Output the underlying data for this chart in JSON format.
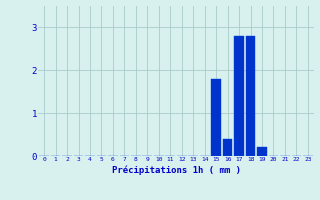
{
  "hours": [
    0,
    1,
    2,
    3,
    4,
    5,
    6,
    7,
    8,
    9,
    10,
    11,
    12,
    13,
    14,
    15,
    16,
    17,
    18,
    19,
    20,
    21,
    22,
    23
  ],
  "values": [
    0,
    0,
    0,
    0,
    0,
    0,
    0,
    0,
    0,
    0,
    0,
    0,
    0,
    0,
    0,
    1.8,
    0.4,
    2.8,
    2.8,
    0.2,
    0,
    0,
    0,
    0
  ],
  "bar_color": "#0033cc",
  "bar_edge_color": "#0044dd",
  "background_color": "#d8f0ee",
  "grid_color": "#aacccc",
  "xlabel": "Précipitations 1h ( mm )",
  "xlabel_color": "#0000cc",
  "tick_color": "#0000cc",
  "ylim": [
    0,
    3.5
  ],
  "yticks": [
    0,
    1,
    2,
    3
  ],
  "xlim": [
    -0.5,
    23.5
  ]
}
